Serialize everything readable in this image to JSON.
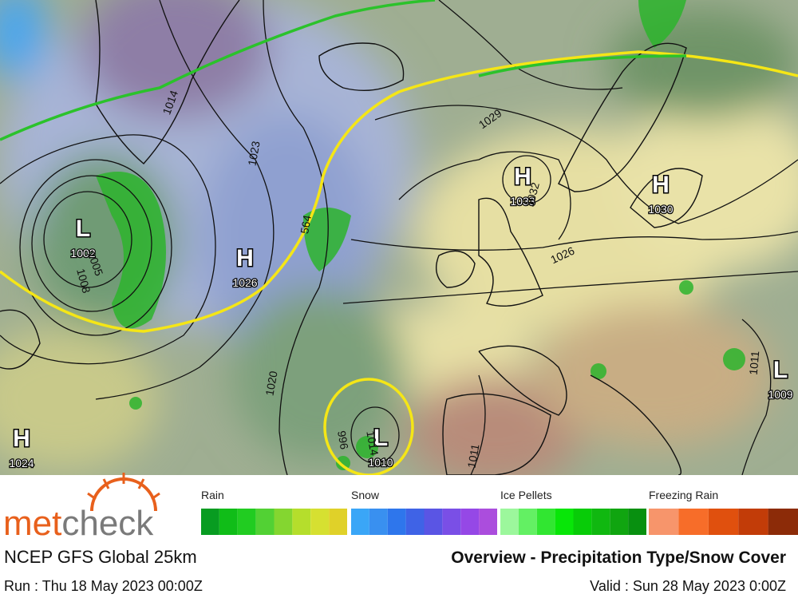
{
  "map": {
    "pressure_centers": [
      {
        "symbol": "H",
        "value": 1033
      },
      {
        "symbol": "H",
        "value": 1030
      },
      {
        "symbol": "L",
        "value": 1002
      },
      {
        "symbol": "H",
        "value": 1026
      },
      {
        "symbol": "L",
        "value": 1009
      },
      {
        "symbol": "H",
        "value": 1024
      },
      {
        "symbol": "L",
        "value": 1010
      }
    ],
    "isobar_labels": [
      1005,
      1008,
      1014,
      1023,
      1029,
      1032,
      1026,
      1020,
      1011,
      1011,
      1014,
      996,
      564
    ]
  },
  "legend": {
    "groups": [
      {
        "label": "Rain",
        "colors": [
          "#089c21",
          "#10bd18",
          "#21cc21",
          "#52d134",
          "#84d630",
          "#b5de2c",
          "#d6e031",
          "#e0d129"
        ]
      },
      {
        "label": "Snow",
        "colors": [
          "#3aa6f7",
          "#3990f0",
          "#2e76ec",
          "#3f63e6",
          "#5a55e4",
          "#7a4fe6",
          "#9548e6",
          "#ab4ddd"
        ]
      },
      {
        "label": "Ice Pellets",
        "colors": [
          "#9cf79c",
          "#63f063",
          "#31e631",
          "#08e608",
          "#08cc08",
          "#10b810",
          "#10a510",
          "#089010"
        ]
      },
      {
        "label": "Freezing Rain",
        "colors": [
          "#f7956b",
          "#f76d29",
          "#e0500e",
          "#c23c08",
          "#8c2b08"
        ]
      }
    ]
  },
  "footer": {
    "brand": [
      "met",
      "check"
    ],
    "model": "NCEP GFS Global 25km",
    "title": "Overview - Precipitation Type/Snow Cover",
    "run": "Run : Thu 18 May 2023 00:00Z",
    "valid": "Valid : Sun 28 May 2023 0:00Z"
  }
}
